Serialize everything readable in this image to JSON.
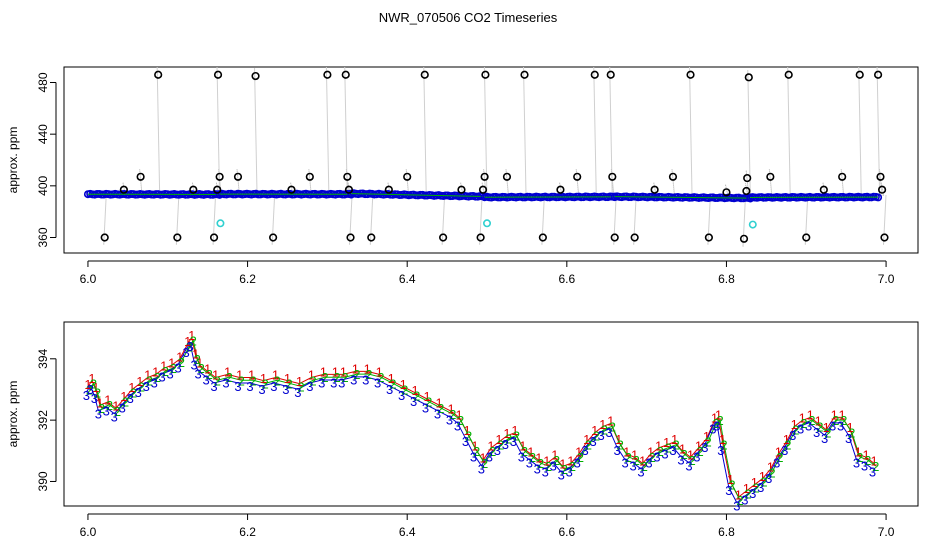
{
  "title": "NWR_070506  CO2 Timeseries",
  "colors": {
    "axis": "#000000",
    "outlier": "#000000",
    "trace": "#a0a0a0",
    "series1": "#e00000",
    "series2": "#00b000",
    "series3": "#0000d0",
    "flag": "#30d0d0"
  },
  "chart_data": [
    {
      "type": "scatter",
      "ylabel": "approx. ppm",
      "xlim": [
        5.97,
        7.04
      ],
      "ylim": [
        348,
        492
      ],
      "xticks": [
        "6.0",
        "6.2",
        "6.4",
        "6.6",
        "6.8",
        "7.0"
      ],
      "yticks": [
        "360",
        "400",
        "440",
        "480"
      ],
      "segments": [
        {
          "x": [
            6.0,
            6.165
          ],
          "y": [
            393.5,
            393.3
          ]
        },
        {
          "x": [
            6.165,
            6.33
          ],
          "y": [
            393.6,
            393.5
          ]
        },
        {
          "x": [
            6.33,
            6.497
          ],
          "y": [
            394.0,
            391.7
          ]
        },
        {
          "x": [
            6.497,
            6.66
          ],
          "y": [
            391.2,
            391.5
          ]
        },
        {
          "x": [
            6.66,
            6.83
          ],
          "y": [
            391.6,
            390.5
          ]
        },
        {
          "x": [
            6.83,
            6.99
          ],
          "y": [
            391.0,
            391.3
          ]
        }
      ],
      "outliers": [
        {
          "x": 6.021,
          "y": 360
        },
        {
          "x": 6.045,
          "y": 397
        },
        {
          "x": 6.066,
          "y": 407
        },
        {
          "x": 6.088,
          "y": 486
        },
        {
          "x": 6.112,
          "y": 360
        },
        {
          "x": 6.132,
          "y": 397
        },
        {
          "x": 6.158,
          "y": 360
        },
        {
          "x": 6.162,
          "y": 397
        },
        {
          "x": 6.163,
          "y": 486
        },
        {
          "x": 6.165,
          "y": 407
        },
        {
          "x": 6.188,
          "y": 407
        },
        {
          "x": 6.21,
          "y": 485
        },
        {
          "x": 6.232,
          "y": 360
        },
        {
          "x": 6.255,
          "y": 397
        },
        {
          "x": 6.278,
          "y": 407
        },
        {
          "x": 6.3,
          "y": 486
        },
        {
          "x": 6.323,
          "y": 486
        },
        {
          "x": 6.325,
          "y": 407
        },
        {
          "x": 6.327,
          "y": 397
        },
        {
          "x": 6.329,
          "y": 360
        },
        {
          "x": 6.355,
          "y": 360
        },
        {
          "x": 6.377,
          "y": 397
        },
        {
          "x": 6.4,
          "y": 407
        },
        {
          "x": 6.422,
          "y": 486
        },
        {
          "x": 6.445,
          "y": 360
        },
        {
          "x": 6.468,
          "y": 397
        },
        {
          "x": 6.492,
          "y": 360
        },
        {
          "x": 6.495,
          "y": 397
        },
        {
          "x": 6.497,
          "y": 407
        },
        {
          "x": 6.498,
          "y": 486
        },
        {
          "x": 6.525,
          "y": 407
        },
        {
          "x": 6.547,
          "y": 486
        },
        {
          "x": 6.57,
          "y": 360
        },
        {
          "x": 6.592,
          "y": 397
        },
        {
          "x": 6.613,
          "y": 407
        },
        {
          "x": 6.635,
          "y": 486
        },
        {
          "x": 6.655,
          "y": 486
        },
        {
          "x": 6.657,
          "y": 407
        },
        {
          "x": 6.66,
          "y": 360
        },
        {
          "x": 6.685,
          "y": 360
        },
        {
          "x": 6.71,
          "y": 397
        },
        {
          "x": 6.733,
          "y": 407
        },
        {
          "x": 6.755,
          "y": 486
        },
        {
          "x": 6.778,
          "y": 360
        },
        {
          "x": 6.8,
          "y": 395
        },
        {
          "x": 6.822,
          "y": 359
        },
        {
          "x": 6.825,
          "y": 396
        },
        {
          "x": 6.826,
          "y": 406
        },
        {
          "x": 6.828,
          "y": 484
        },
        {
          "x": 6.855,
          "y": 407
        },
        {
          "x": 6.878,
          "y": 486
        },
        {
          "x": 6.9,
          "y": 360
        },
        {
          "x": 6.922,
          "y": 397
        },
        {
          "x": 6.945,
          "y": 407
        },
        {
          "x": 6.967,
          "y": 486
        },
        {
          "x": 6.99,
          "y": 486
        },
        {
          "x": 6.993,
          "y": 407
        },
        {
          "x": 6.995,
          "y": 397
        },
        {
          "x": 6.998,
          "y": 360
        }
      ],
      "flags": [
        {
          "x": 6.166,
          "y": 371
        },
        {
          "x": 6.5,
          "y": 371
        },
        {
          "x": 6.833,
          "y": 370
        }
      ]
    },
    {
      "type": "line",
      "ylabel": "approx. ppm",
      "xlim": [
        5.97,
        7.04
      ],
      "ylim": [
        389.2,
        395.2
      ],
      "xticks": [
        "6.0",
        "6.2",
        "6.4",
        "6.6",
        "6.8",
        "7.0"
      ],
      "yticks": [
        "390",
        "392",
        "394"
      ],
      "labels": [
        "1",
        "2",
        "3"
      ],
      "x": [
        6.0,
        6.005,
        6.01,
        6.015,
        6.025,
        6.035,
        6.045,
        6.055,
        6.065,
        6.075,
        6.085,
        6.095,
        6.105,
        6.115,
        6.125,
        6.13,
        6.135,
        6.14,
        6.15,
        6.16,
        6.175,
        6.19,
        6.205,
        6.22,
        6.235,
        6.25,
        6.265,
        6.28,
        6.295,
        6.31,
        6.32,
        6.335,
        6.35,
        6.365,
        6.38,
        6.395,
        6.41,
        6.425,
        6.44,
        6.455,
        6.465,
        6.475,
        6.485,
        6.495,
        6.505,
        6.515,
        6.525,
        6.535,
        6.545,
        6.555,
        6.565,
        6.575,
        6.585,
        6.595,
        6.605,
        6.615,
        6.625,
        6.635,
        6.645,
        6.655,
        6.665,
        6.675,
        6.685,
        6.695,
        6.705,
        6.715,
        6.725,
        6.735,
        6.745,
        6.755,
        6.765,
        6.775,
        6.785,
        6.79,
        6.795,
        6.805,
        6.815,
        6.825,
        6.835,
        6.845,
        6.855,
        6.865,
        6.875,
        6.885,
        6.895,
        6.905,
        6.915,
        6.925,
        6.935,
        6.945,
        6.955,
        6.965,
        6.975,
        6.985
      ],
      "y": [
        393.0,
        393.2,
        392.9,
        392.4,
        392.5,
        392.3,
        392.6,
        392.9,
        393.1,
        393.3,
        393.4,
        393.6,
        393.7,
        393.9,
        394.4,
        394.6,
        394.0,
        393.7,
        393.5,
        393.3,
        393.4,
        393.3,
        393.3,
        393.2,
        393.3,
        393.2,
        393.1,
        393.3,
        393.4,
        393.4,
        393.4,
        393.5,
        393.5,
        393.4,
        393.2,
        393.0,
        392.8,
        392.6,
        392.4,
        392.2,
        392.0,
        391.5,
        391.0,
        390.6,
        391.0,
        391.2,
        391.4,
        391.5,
        391.0,
        390.8,
        390.6,
        390.5,
        390.7,
        390.4,
        390.5,
        390.8,
        391.2,
        391.5,
        391.7,
        391.8,
        391.2,
        390.8,
        390.7,
        390.5,
        390.8,
        391.0,
        391.1,
        391.2,
        390.9,
        390.7,
        391.0,
        391.3,
        391.9,
        392.0,
        391.2,
        389.9,
        389.4,
        389.6,
        389.8,
        390.0,
        390.3,
        390.8,
        391.2,
        391.7,
        391.9,
        392.0,
        391.8,
        391.6,
        392.0,
        392.0,
        391.6,
        390.8,
        390.7,
        390.5
      ]
    }
  ]
}
